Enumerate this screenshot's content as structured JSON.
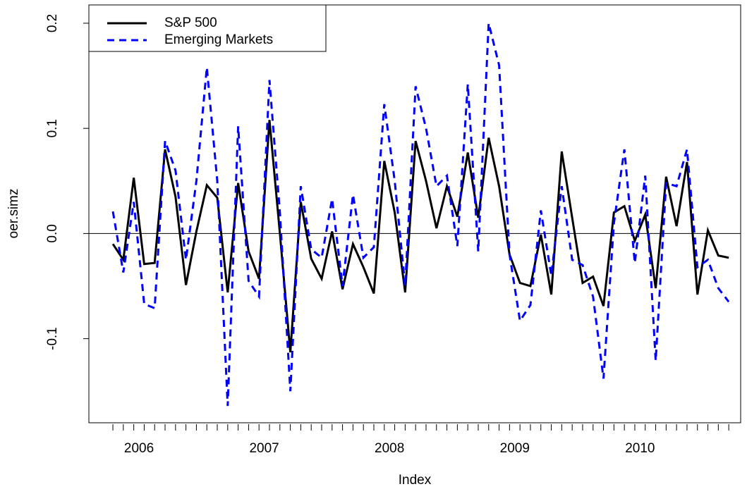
{
  "chart_data": {
    "type": "line",
    "x": [
      1,
      2,
      3,
      4,
      5,
      6,
      7,
      8,
      9,
      10,
      11,
      12,
      13,
      14,
      15,
      16,
      17,
      18,
      19,
      20,
      21,
      22,
      23,
      24,
      25,
      26,
      27,
      28,
      29,
      30,
      31,
      32,
      33,
      34,
      35,
      36,
      37,
      38,
      39,
      40,
      41,
      42,
      43,
      44,
      45,
      46,
      47,
      48,
      49,
      50,
      51,
      52,
      53,
      54,
      55,
      56,
      57,
      58,
      59,
      60
    ],
    "xlim": [
      -1.3,
      61.14
    ],
    "xticks": [
      {
        "value": 3.5,
        "label": "2006"
      },
      {
        "value": 15.5,
        "label": "2007"
      },
      {
        "value": 27.5,
        "label": "2008"
      },
      {
        "value": 39.5,
        "label": "2009"
      },
      {
        "value": 51.5,
        "label": "2010"
      }
    ],
    "xlabel": "Index",
    "ylabel": "oer.simz",
    "ylim": [
      -0.18,
      0.2174
    ],
    "yticks": [
      -0.1,
      {
        "value": 0,
        "label": "0.0"
      },
      0.1,
      0.2
    ],
    "reference_line": 0,
    "legend": "top-left",
    "series": [
      {
        "name": "S&P 500",
        "color": "#000000",
        "dash": "solid",
        "values": [
          -0.01,
          -0.025,
          0.053,
          -0.029,
          -0.028,
          0.08,
          0.035,
          -0.049,
          0.002,
          0.046,
          0.034,
          -0.056,
          0.048,
          -0.017,
          -0.043,
          0.108,
          0.0,
          -0.113,
          0.03,
          -0.024,
          -0.043,
          0.002,
          -0.053,
          -0.01,
          -0.032,
          -0.057,
          0.069,
          0.02,
          -0.056,
          0.088,
          0.05,
          0.005,
          0.045,
          0.016,
          0.077,
          0.015,
          0.091,
          0.045,
          -0.02,
          -0.047,
          -0.05,
          -0.001,
          -0.058,
          0.078,
          0.015,
          -0.047,
          -0.041,
          -0.069,
          0.02,
          0.026,
          -0.007,
          0.018,
          -0.052,
          0.054,
          0.007,
          0.068,
          -0.058,
          0.003,
          -0.021,
          -0.023
        ]
      },
      {
        "name": "Emerging Markets",
        "color": "#0000ff",
        "dash": "dashed",
        "values": [
          0.021,
          -0.037,
          0.03,
          -0.067,
          -0.071,
          0.088,
          0.06,
          -0.025,
          0.05,
          0.158,
          0.05,
          -0.164,
          0.102,
          -0.045,
          -0.06,
          0.146,
          0.02,
          -0.15,
          0.045,
          -0.015,
          -0.023,
          0.033,
          -0.05,
          0.037,
          -0.023,
          -0.013,
          0.123,
          0.05,
          -0.05,
          0.14,
          0.1,
          0.045,
          0.055,
          -0.012,
          0.142,
          -0.017,
          0.2,
          0.16,
          -0.02,
          -0.083,
          -0.068,
          0.022,
          -0.04,
          0.045,
          -0.025,
          -0.03,
          -0.06,
          -0.138,
          0.01,
          0.08,
          -0.028,
          0.055,
          -0.121,
          0.048,
          0.045,
          0.08,
          -0.032,
          -0.025,
          -0.052,
          -0.065
        ]
      }
    ]
  }
}
